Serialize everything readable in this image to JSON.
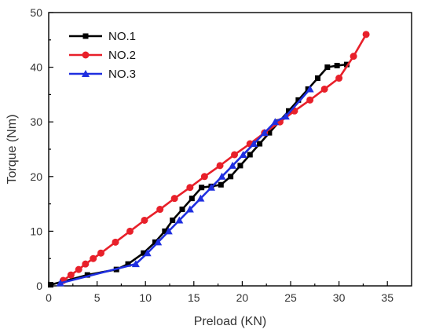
{
  "chart_data": {
    "type": "line",
    "xlabel": "Preload (KN)",
    "ylabel": "Torque (Nm)",
    "xlim": [
      0,
      37.5
    ],
    "ylim": [
      0,
      50
    ],
    "xticks": [
      0,
      5,
      10,
      15,
      20,
      25,
      30,
      35
    ],
    "yticks": [
      0,
      10,
      20,
      30,
      40,
      50
    ],
    "grid": false,
    "legend_position": "top-left",
    "series": [
      {
        "name": "NO.1",
        "color": "#000000",
        "marker": "square",
        "x": [
          0.2,
          4.0,
          7.0,
          8.2,
          9.8,
          11.0,
          12.0,
          12.8,
          13.8,
          14.8,
          15.8,
          16.8,
          17.8,
          18.8,
          19.8,
          20.8,
          21.8,
          22.8,
          23.8,
          24.8,
          25.8,
          26.8,
          27.8,
          28.8,
          29.8,
          30.8
        ],
        "y": [
          0.2,
          2.0,
          3.0,
          4.0,
          6.0,
          8.0,
          10.0,
          12.0,
          14.0,
          16.0,
          18.0,
          18.2,
          18.5,
          20.0,
          22.0,
          24.0,
          26.0,
          28.0,
          30.0,
          32.0,
          34.0,
          36.0,
          38.0,
          40.0,
          40.3,
          40.5
        ]
      },
      {
        "name": "NO.2",
        "color": "#e8202a",
        "marker": "circle",
        "x": [
          1.5,
          2.3,
          3.1,
          3.8,
          4.6,
          5.4,
          6.9,
          8.4,
          9.9,
          11.5,
          13.0,
          14.6,
          16.1,
          17.7,
          19.2,
          20.8,
          22.3,
          23.9,
          25.4,
          27.0,
          28.5,
          30.0,
          31.5,
          32.8
        ],
        "y": [
          1.0,
          2.0,
          3.0,
          4.0,
          5.0,
          6.0,
          8.0,
          10.0,
          12.0,
          14.0,
          16.0,
          18.0,
          20.0,
          22.0,
          24.0,
          26.0,
          28.0,
          30.0,
          32.0,
          34.0,
          36.0,
          38.0,
          42.0,
          46.0
        ],
        "note_points": "approximated monotonic increasing"
      },
      {
        "name": "NO.3",
        "color": "#1f2fe0",
        "marker": "triangle",
        "x": [
          1.2,
          9.0,
          10.2,
          11.3,
          12.4,
          13.5,
          14.6,
          15.7,
          16.8,
          17.9,
          19.0,
          20.1,
          21.2,
          22.3,
          23.4,
          24.5,
          27.0
        ],
        "y": [
          0.5,
          4.0,
          6.0,
          8.0,
          10.0,
          12.0,
          14.0,
          16.0,
          18.0,
          20.0,
          22.0,
          24.0,
          26.0,
          28.0,
          30.0,
          31.0,
          36.0
        ]
      }
    ]
  }
}
